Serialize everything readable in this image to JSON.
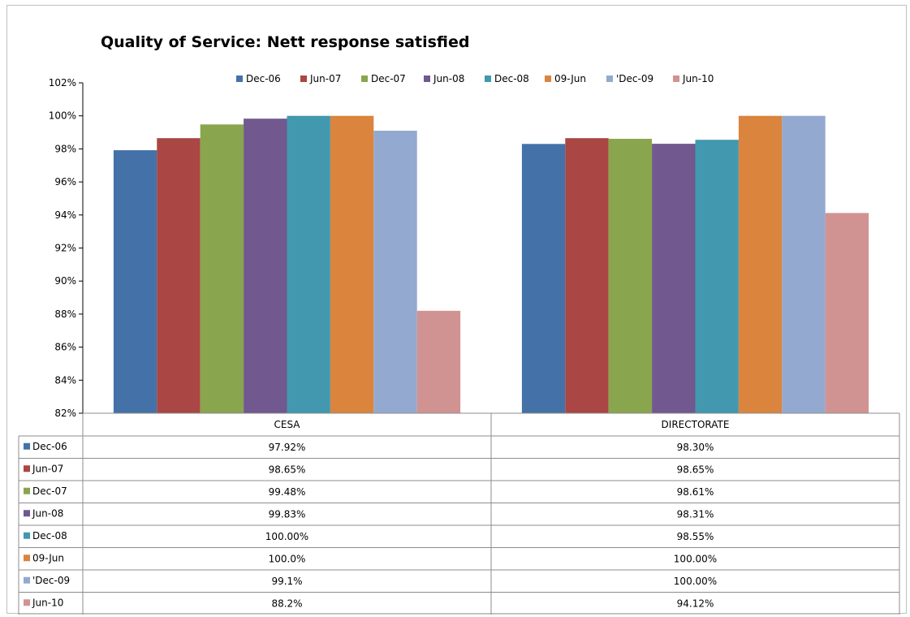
{
  "chart_data": {
    "type": "bar",
    "title": "Quality of Service: Nett response satisfied",
    "xlabel": "",
    "ylabel": "",
    "ylim": [
      82,
      102
    ],
    "y_ticks": [
      "82%",
      "84%",
      "86%",
      "88%",
      "90%",
      "92%",
      "94%",
      "96%",
      "98%",
      "100%",
      "102%"
    ],
    "grid": false,
    "legend_position": "top",
    "categories": [
      "CESA",
      "DIRECTORATE"
    ],
    "series": [
      {
        "name": "Dec-06",
        "color": "#4472A8",
        "values": [
          97.92,
          98.3
        ],
        "labels": [
          "97.92%",
          "98.30%"
        ]
      },
      {
        "name": "Jun-07",
        "color": "#AA4643",
        "values": [
          98.65,
          98.65
        ],
        "labels": [
          "98.65%",
          "98.65%"
        ]
      },
      {
        "name": "Dec-07",
        "color": "#89A54E",
        "values": [
          99.48,
          98.61
        ],
        "labels": [
          "99.48%",
          "98.61%"
        ]
      },
      {
        "name": "Jun-08",
        "color": "#71588F",
        "values": [
          99.83,
          98.31
        ],
        "labels": [
          "99.83%",
          "98.31%"
        ]
      },
      {
        "name": "Dec-08",
        "color": "#4198AF",
        "values": [
          100.0,
          98.55
        ],
        "labels": [
          "100.00%",
          "98.55%"
        ]
      },
      {
        "name": "09-Jun",
        "color": "#DB843D",
        "values": [
          100.0,
          100.0
        ],
        "labels": [
          "100.0%",
          "100.00%"
        ]
      },
      {
        "name": "'Dec-09",
        "color": "#93A9CF",
        "values": [
          99.1,
          100.0
        ],
        "labels": [
          "99.1%",
          "100.00%"
        ]
      },
      {
        "name": "Jun-10",
        "color": "#D19392",
        "values": [
          88.2,
          94.12
        ],
        "labels": [
          "88.2%",
          "94.12%"
        ]
      }
    ]
  }
}
